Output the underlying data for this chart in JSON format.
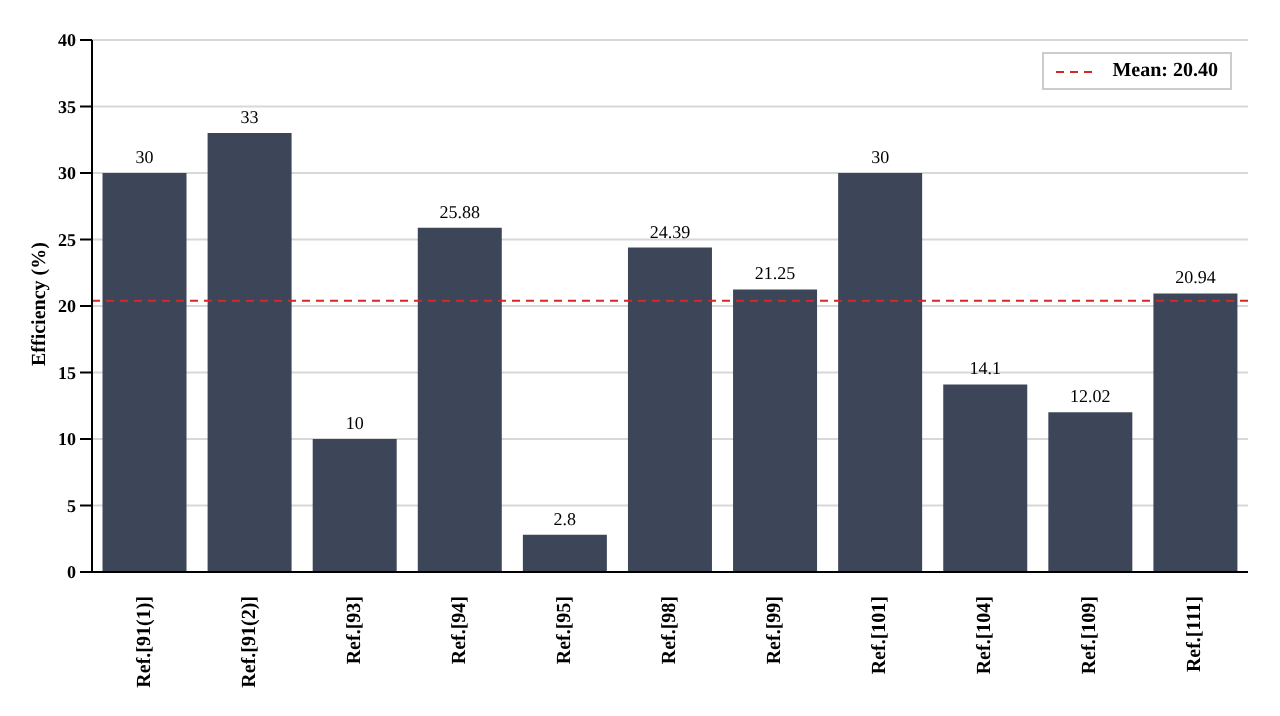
{
  "chart_data": {
    "type": "bar",
    "ylabel": "Efficiency (%)",
    "categories": [
      "Ref.[91(1)]",
      "Ref.[91(2)]",
      "Ref.[93]",
      "Ref.[94]",
      "Ref.[95]",
      "Ref.[98]",
      "Ref.[99]",
      "Ref.[101]",
      "Ref.[104]",
      "Ref.[109]",
      "Ref.[111]"
    ],
    "values": [
      30,
      33,
      10,
      25.88,
      2.8,
      24.39,
      21.25,
      30,
      14.1,
      12.02,
      20.94
    ],
    "color": "#3d4658",
    "ylim": [
      0,
      40
    ],
    "yticks": [
      0,
      5,
      10,
      15,
      20,
      25,
      30,
      35,
      40
    ],
    "grid": "y",
    "data_labels": true,
    "ref_lines": [
      {
        "axis": "y",
        "value": 20.4,
        "label": "Mean: 20.40",
        "color": "#d62728",
        "line_style": "dashed"
      }
    ],
    "legend": "top right"
  }
}
